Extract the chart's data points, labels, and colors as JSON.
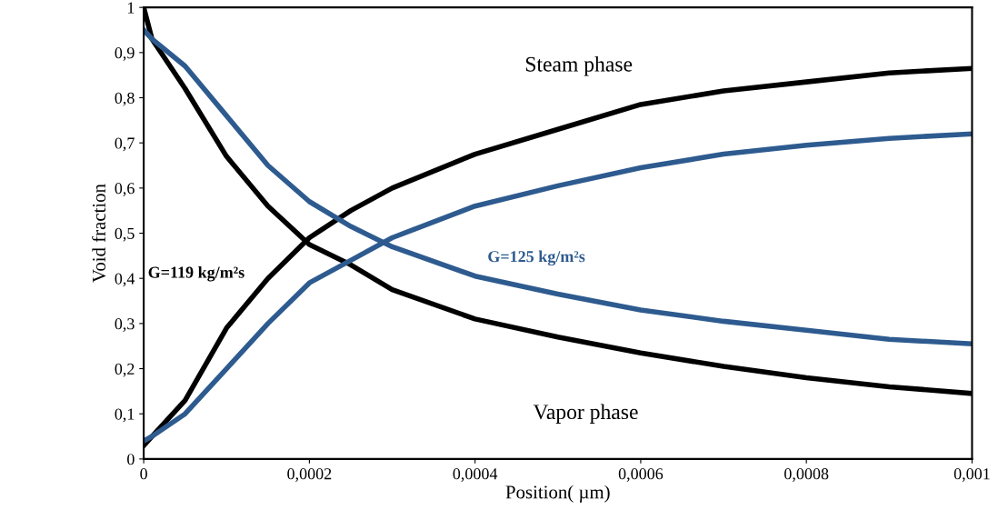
{
  "chart_data": {
    "type": "line",
    "xlabel": "Position( µm)",
    "ylabel": "Void fraction",
    "xlim": [
      0,
      0.001
    ],
    "ylim": [
      0,
      1
    ],
    "xticks": [
      0,
      {
        "value": 0.0002,
        "label": "0,0002"
      },
      {
        "value": 0.0004,
        "label": "0,0004"
      },
      {
        "value": 0.0006,
        "label": "0,0006"
      },
      {
        "value": 0.0008,
        "label": "0,0008"
      },
      {
        "value": 0.001,
        "label": "0,001"
      }
    ],
    "yticks": [
      0,
      {
        "value": 0.1,
        "label": "0,1"
      },
      {
        "value": 0.2,
        "label": "0,2"
      },
      {
        "value": 0.3,
        "label": "0,3"
      },
      {
        "value": 0.4,
        "label": "0,4"
      },
      {
        "value": 0.5,
        "label": "0,5"
      },
      {
        "value": 0.6,
        "label": "0,6"
      },
      {
        "value": 0.7,
        "label": "0,7"
      },
      {
        "value": 0.8,
        "label": "0,8"
      },
      {
        "value": 0.9,
        "label": "0,9"
      },
      1
    ],
    "grid": false,
    "legend": false,
    "marker": "none",
    "line_style": "solid",
    "x": [
      0,
      1e-05,
      5e-05,
      0.0001,
      0.00015,
      0.0002,
      0.00025,
      0.0003,
      0.0004,
      0.0005,
      0.0006,
      0.0007,
      0.0008,
      0.0009,
      0.001
    ],
    "series": [
      {
        "color": "#000000",
        "values": [
          0.03,
          0.05,
          0.13,
          0.29,
          0.4,
          0.49,
          0.55,
          0.6,
          0.675,
          0.73,
          0.785,
          0.815,
          0.835,
          0.855,
          0.865
        ]
      },
      {
        "color": "#000000",
        "values": [
          1.0,
          0.93,
          0.82,
          0.67,
          0.56,
          0.475,
          0.43,
          0.375,
          0.31,
          0.27,
          0.235,
          0.205,
          0.18,
          0.16,
          0.145
        ]
      },
      {
        "color": "#2e5b8f",
        "values": [
          0.04,
          0.05,
          0.1,
          0.2,
          0.3,
          0.39,
          0.44,
          0.49,
          0.56,
          0.605,
          0.645,
          0.675,
          0.695,
          0.71,
          0.72
        ]
      },
      {
        "color": "#2e5b8f",
        "values": [
          0.95,
          0.93,
          0.87,
          0.76,
          0.65,
          0.57,
          0.515,
          0.47,
          0.405,
          0.365,
          0.33,
          0.305,
          0.285,
          0.265,
          0.255
        ]
      }
    ],
    "annotations": [
      "Steam phase",
      "Vapor phase",
      "G=119 kg/m²s",
      "G=125 kg/m²s"
    ]
  }
}
